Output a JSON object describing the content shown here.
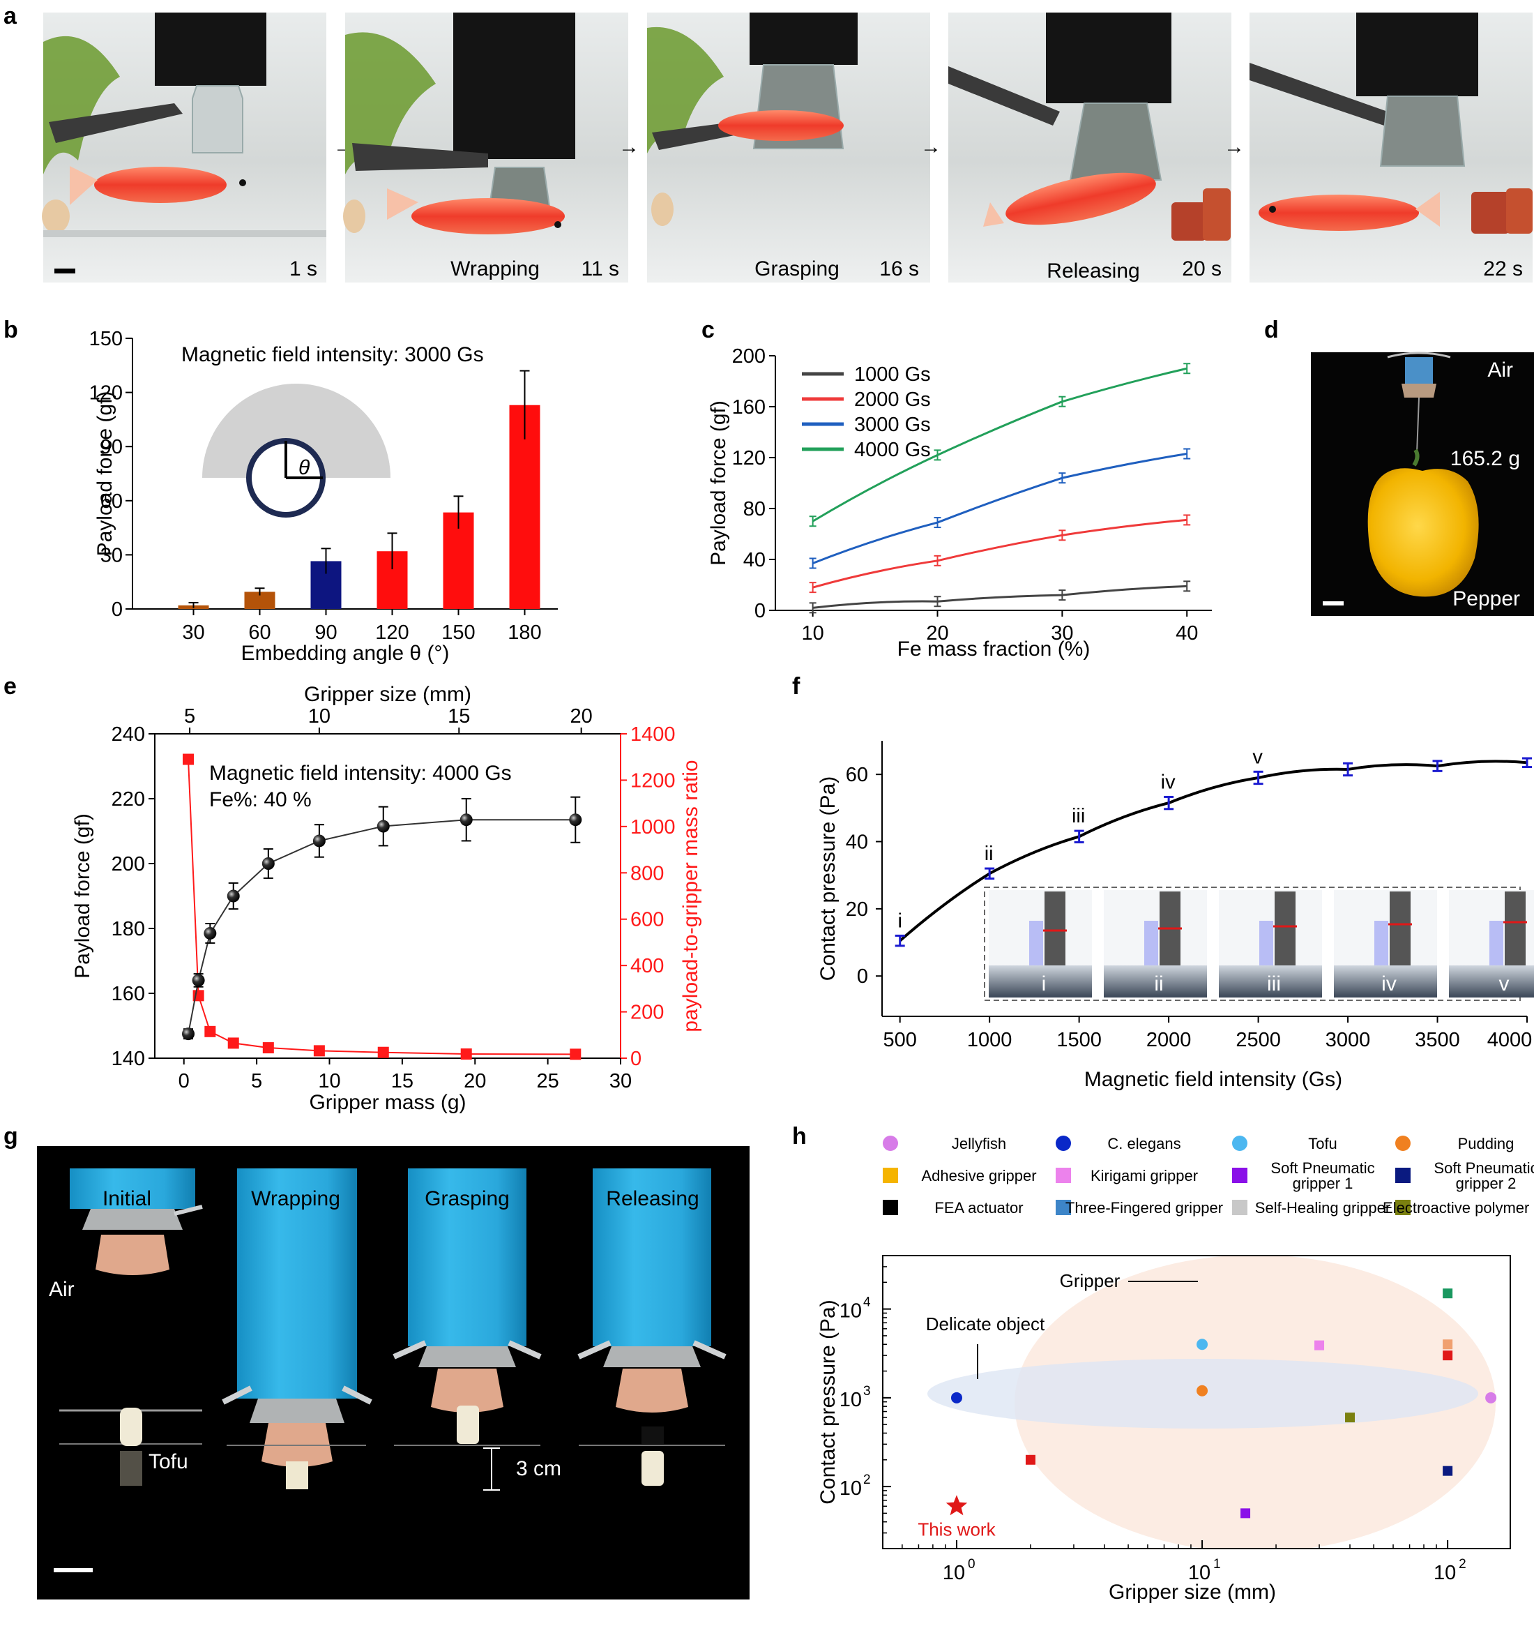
{
  "panel_labels": {
    "a": "a",
    "b": "b",
    "c": "c",
    "d": "d",
    "e": "e",
    "f": "f",
    "g": "g",
    "h": "h"
  },
  "panel_a": {
    "frames": [
      {
        "time": "1 s",
        "label": ""
      },
      {
        "time": "11 s",
        "label": "Wrapping"
      },
      {
        "time": "16 s",
        "label": "Grasping"
      },
      {
        "time": "20 s",
        "label": "Releasing"
      },
      {
        "time": "22 s",
        "label": ""
      }
    ],
    "arrow": "→"
  },
  "panel_d": {
    "top_label": "Air",
    "mass_label": "165.2 g",
    "object_label": "Pepper"
  },
  "panel_g": {
    "frames": [
      {
        "label": "Initial"
      },
      {
        "label": "Wrapping"
      },
      {
        "label": "Grasping"
      },
      {
        "label": "Releasing"
      }
    ],
    "air_label": "Air",
    "tofu_label": "Tofu",
    "scale_label": "3 cm"
  },
  "chart_data": [
    {
      "id": "b",
      "type": "bar",
      "title": "Magnetic field intensity: 3000 Gs",
      "xlabel": "Embedding angle θ (°)",
      "ylabel": "Payload force (gf)",
      "ylim": [
        0,
        150
      ],
      "yticks": [
        0,
        30,
        60,
        90,
        120,
        150
      ],
      "categories": [
        "30",
        "60",
        "90",
        "120",
        "150",
        "180"
      ],
      "values": [
        2,
        9.5,
        26.5,
        32,
        53.5,
        113
      ],
      "errors": [
        1.5,
        2,
        7,
        10,
        9,
        19
      ],
      "colors": [
        "#b45309",
        "#b45309",
        "#0d1580",
        "#ff0d0d",
        "#ff0d0d",
        "#ff0d0d"
      ],
      "inset_symbol": "θ"
    },
    {
      "id": "c",
      "type": "line",
      "xlabel": "Fe mass fraction (%)",
      "ylabel": "Payload force (gf)",
      "x": [
        10,
        20,
        30,
        40
      ],
      "xlim": [
        7,
        42
      ],
      "xticks": [
        10,
        20,
        30,
        40
      ],
      "ylim": [
        0,
        200
      ],
      "yticks": [
        0,
        40,
        80,
        120,
        160,
        200
      ],
      "series": [
        {
          "name": "1000 Gs",
          "color": "#444444",
          "values": [
            2,
            7,
            12,
            19
          ]
        },
        {
          "name": "2000 Gs",
          "color": "#ef3a3a",
          "values": [
            18,
            39,
            59,
            71
          ]
        },
        {
          "name": "3000 Gs",
          "color": "#1f5fbf",
          "values": [
            37,
            69,
            104,
            123
          ]
        },
        {
          "name": "4000 Gs",
          "color": "#22a05a",
          "values": [
            70,
            122,
            164,
            190
          ]
        }
      ]
    },
    {
      "id": "e",
      "type": "scatter",
      "annotation1": "Magnetic field intensity: 4000 Gs",
      "annotation2": "Fe%: 40 %",
      "xlabel": "Gripper mass (g)",
      "ylabel": "Payload force (gf)",
      "x2label": "Gripper size (mm)",
      "y2label": "payload-to-gripper mass ratio",
      "xlim": [
        -2,
        30
      ],
      "xticks": [
        0,
        5,
        10,
        15,
        20,
        25,
        30
      ],
      "x2ticks": [
        {
          "label": "5",
          "x": 0.4
        },
        {
          "label": "10",
          "x": 9.3
        },
        {
          "label": "15",
          "x": 18.9
        },
        {
          "label": "20",
          "x": 27.3
        }
      ],
      "ylim": [
        140,
        240
      ],
      "yticks": [
        140,
        160,
        180,
        200,
        220,
        240
      ],
      "y2lim": [
        0,
        1400
      ],
      "y2ticks": [
        0,
        200,
        400,
        600,
        800,
        1000,
        1200,
        1400
      ],
      "series": [
        {
          "name": "Payload force",
          "axis": "left",
          "color": "#111111",
          "x": [
            0.3,
            1.0,
            1.8,
            3.4,
            5.8,
            9.3,
            13.7,
            19.4,
            26.9
          ],
          "y": [
            147.5,
            164,
            178.5,
            190,
            200,
            207,
            211.5,
            213.5,
            213.5
          ],
          "err": [
            1.5,
            2,
            3,
            4,
            4.5,
            5,
            6,
            6.5,
            7
          ]
        },
        {
          "name": "Payload-to-gripper mass ratio",
          "axis": "right",
          "color": "#ff1a1a",
          "x": [
            0.3,
            1.0,
            1.8,
            3.4,
            5.8,
            9.3,
            13.7,
            19.4,
            26.9
          ],
          "y": [
            1290,
            270,
            115,
            65,
            45,
            32,
            25,
            18,
            17
          ]
        }
      ]
    },
    {
      "id": "f",
      "type": "line",
      "xlabel": "Magnetic field intensity (Gs)",
      "ylabel": "Contact pressure (Pa)",
      "xlim": [
        400,
        4000
      ],
      "xticks": [
        500,
        1000,
        1500,
        2000,
        2500,
        3000,
        3500,
        4000
      ],
      "ylim": [
        -12,
        70
      ],
      "yticks": [
        0,
        20,
        40,
        60
      ],
      "x": [
        500,
        1000,
        1500,
        2000,
        2500,
        3000,
        3500,
        4000
      ],
      "values": [
        10.5,
        30.5,
        41.5,
        51.5,
        59,
        61.5,
        62.5,
        63.5
      ],
      "errors": [
        1.5,
        1.5,
        1.7,
        1.8,
        1.8,
        1.8,
        1.5,
        1.3
      ],
      "point_labels": [
        "i",
        "ii",
        "iii",
        "iv",
        "v",
        "",
        "",
        ""
      ],
      "inset_labels": [
        "i",
        "ii",
        "iii",
        "iv",
        "v"
      ]
    },
    {
      "id": "h",
      "type": "scatter",
      "xlabel": "Gripper size (mm)",
      "ylabel": "Contact pressure (Pa)",
      "xscale": "log",
      "yscale": "log",
      "xlim": [
        0.5,
        180
      ],
      "ylim": [
        20,
        40000
      ],
      "xtick_labels": [
        {
          "base": "10",
          "exp": "0"
        },
        {
          "base": "10",
          "exp": "1"
        },
        {
          "base": "10",
          "exp": "2"
        }
      ],
      "ytick_labels": [
        {
          "base": "10",
          "exp": "2"
        },
        {
          "base": "10",
          "exp": "3"
        },
        {
          "base": "10",
          "exp": "4"
        }
      ],
      "region_labels": {
        "gripper": "Gripper",
        "delicate": "Delicate object"
      },
      "star_label": "This work",
      "legend": [
        {
          "name": "Jellyfish",
          "shape": "circle",
          "color": "#d77ce8"
        },
        {
          "name": "C. elegans",
          "shape": "circle",
          "color": "#0a28c8"
        },
        {
          "name": "Tofu",
          "shape": "circle",
          "color": "#4cb7f0"
        },
        {
          "name": "Pudding",
          "shape": "circle",
          "color": "#f08020"
        },
        {
          "name": "Adhesive gripper",
          "shape": "square",
          "color": "#f5b400"
        },
        {
          "name": "Kirigami gripper",
          "shape": "square",
          "color": "#ec82ec"
        },
        {
          "name": "Soft Pneumatic gripper 1",
          "shape": "square",
          "color": "#8a10e8"
        },
        {
          "name": "Soft Pneumatic gripper 2",
          "shape": "square",
          "color": "#0a1a80"
        },
        {
          "name": "FEA actuator",
          "shape": "square",
          "color": "#000000"
        },
        {
          "name": "Three-Fingered gripper",
          "shape": "square",
          "color": "#3d85c8"
        },
        {
          "name": "Self-Healing gripper",
          "shape": "square",
          "color": "#c8c8c8"
        },
        {
          "name": "Electroactive polymer actuator",
          "shape": "square",
          "color": "#7a8010"
        }
      ],
      "points": [
        {
          "x": 1,
          "y": 1000,
          "shape": "circle",
          "color": "#0a28c8"
        },
        {
          "x": 10,
          "y": 4000,
          "shape": "circle",
          "color": "#4cb7f0"
        },
        {
          "x": 10,
          "y": 1200,
          "shape": "circle",
          "color": "#f08020"
        },
        {
          "x": 150,
          "y": 1000,
          "shape": "circle",
          "color": "#d77ce8"
        },
        {
          "x": 2,
          "y": 200,
          "shape": "square",
          "color": "#e01818"
        },
        {
          "x": 15,
          "y": 50,
          "shape": "square",
          "color": "#8a10e8"
        },
        {
          "x": 30,
          "y": 3900,
          "shape": "square",
          "color": "#ec82ec"
        },
        {
          "x": 40,
          "y": 600,
          "shape": "square",
          "color": "#7a8010"
        },
        {
          "x": 100,
          "y": 15000,
          "shape": "square",
          "color": "#1a9860"
        },
        {
          "x": 100,
          "y": 4000,
          "shape": "square",
          "color": "#f0a070"
        },
        {
          "x": 100,
          "y": 3000,
          "shape": "square",
          "color": "#e01818"
        },
        {
          "x": 100,
          "y": 150,
          "shape": "square",
          "color": "#0a1a80"
        }
      ],
      "star": {
        "x": 1,
        "y": 60,
        "color": "#e01818"
      }
    }
  ]
}
